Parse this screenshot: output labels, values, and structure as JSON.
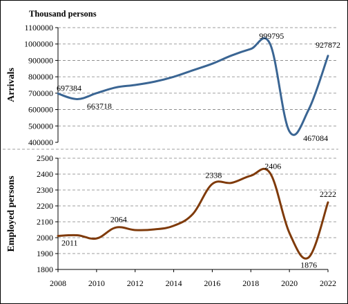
{
  "unit_label": "Thousand persons",
  "colors": {
    "arrivals_line": "#3a6593",
    "employed_line": "#7f3a0a",
    "grid": "#7f7f7f",
    "frame": "#000000"
  },
  "chart_data": [
    {
      "type": "line",
      "title": "",
      "ylabel": "Arrivals",
      "ylim": [
        400000,
        1100000
      ],
      "yticks": [
        400000,
        500000,
        600000,
        700000,
        800000,
        900000,
        1000000,
        1100000
      ],
      "ytick_labels": [
        "400000",
        "500000",
        "600000",
        "700000",
        "800000",
        "900000",
        "1000000",
        "1100000"
      ],
      "grid": true,
      "x": [
        2008,
        2009,
        2010,
        2011,
        2012,
        2013,
        2014,
        2015,
        2016,
        2017,
        2018,
        2019,
        2020,
        2021,
        2022
      ],
      "series": [
        {
          "values": [
            697384,
            663718,
            700000,
            735000,
            750000,
            770000,
            800000,
            840000,
            880000,
            930000,
            970000,
            999795,
            467084,
            600000,
            927872
          ]
        }
      ],
      "annotations": [
        {
          "x": 2008,
          "y": 697384,
          "text": "697384"
        },
        {
          "x": 2009,
          "y": 663718,
          "text": "663718"
        },
        {
          "x": 2019,
          "y": 999795,
          "text": "999795"
        },
        {
          "x": 2020.5,
          "y": 467084,
          "text": "467084"
        },
        {
          "x": 2022,
          "y": 927872,
          "text": "927872"
        }
      ]
    },
    {
      "type": "line",
      "title": "",
      "ylabel": "Employed persons",
      "xlabel": "",
      "ylim": [
        1800,
        2500
      ],
      "yticks": [
        1800,
        1900,
        2000,
        2100,
        2200,
        2300,
        2400,
        2500
      ],
      "ytick_labels": [
        "1800",
        "1900",
        "2000",
        "2100",
        "2200",
        "2300",
        "2400",
        "2500"
      ],
      "xticks": [
        2008,
        2010,
        2012,
        2014,
        2016,
        2018,
        2020,
        2022
      ],
      "xtick_labels": [
        "2008",
        "2010",
        "2012",
        "2014",
        "2016",
        "2018",
        "2020",
        "2022"
      ],
      "grid": true,
      "x": [
        2008,
        2009,
        2010,
        2011,
        2012,
        2013,
        2014,
        2015,
        2016,
        2017,
        2018,
        2019,
        2020,
        2021,
        2022
      ],
      "series": [
        {
          "values": [
            2011,
            2015,
            1995,
            2064,
            2048,
            2052,
            2075,
            2150,
            2338,
            2345,
            2390,
            2406,
            2030,
            1876,
            2222
          ]
        }
      ],
      "annotations": [
        {
          "x": 2008.6,
          "y": 2011,
          "text": "2011"
        },
        {
          "x": 2011,
          "y": 2064,
          "text": "2064"
        },
        {
          "x": 2016,
          "y": 2338,
          "text": "2338"
        },
        {
          "x": 2019,
          "y": 2406,
          "text": "2406"
        },
        {
          "x": 2021,
          "y": 1876,
          "text": "1876"
        },
        {
          "x": 2022,
          "y": 2222,
          "text": "2222"
        }
      ]
    }
  ]
}
